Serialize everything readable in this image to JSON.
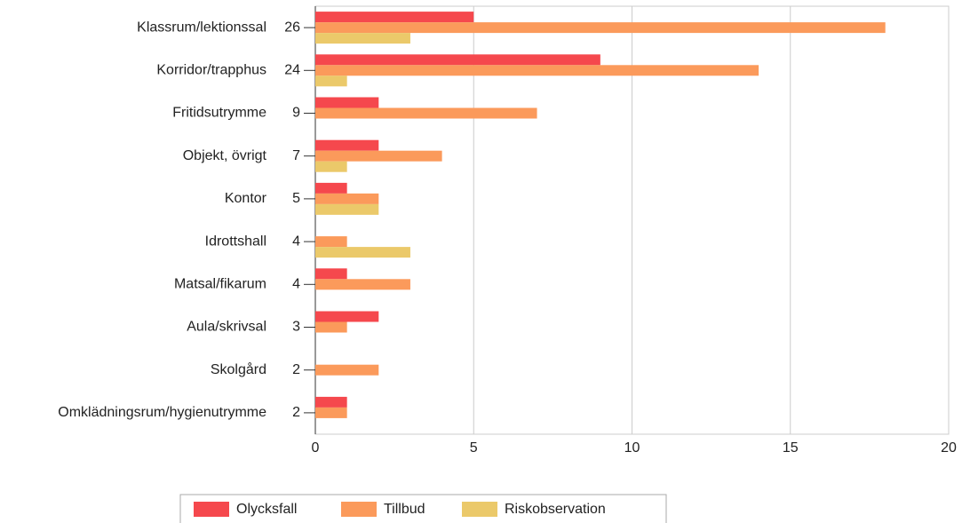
{
  "chart_data": {
    "type": "hbar",
    "categories": [
      "Klassrum/lektionssal",
      "Korridor/trapphus",
      "Fritidsutrymme",
      "Objekt, övrigt",
      "Kontor",
      "Idrottshall",
      "Matsal/fikarum",
      "Aula/skrivsal",
      "Skolgård",
      "Omklädningsrum/hygienutrymme"
    ],
    "category_totals": [
      26,
      24,
      9,
      7,
      5,
      4,
      4,
      3,
      2,
      2
    ],
    "series": [
      {
        "name": "Olycksfall",
        "color": "#f5484d",
        "values": [
          5,
          9,
          2,
          2,
          1,
          0,
          1,
          2,
          0,
          1
        ]
      },
      {
        "name": "Tillbud",
        "color": "#fb9a5b",
        "values": [
          18,
          14,
          7,
          4,
          2,
          1,
          3,
          1,
          2,
          1
        ]
      },
      {
        "name": "Riskobservation",
        "color": "#ebc96a",
        "values": [
          3,
          1,
          0,
          1,
          2,
          3,
          0,
          0,
          0,
          0
        ]
      }
    ],
    "xlim": [
      0,
      20
    ],
    "xticks": [
      0,
      5,
      10,
      15,
      20
    ],
    "grid": true
  }
}
